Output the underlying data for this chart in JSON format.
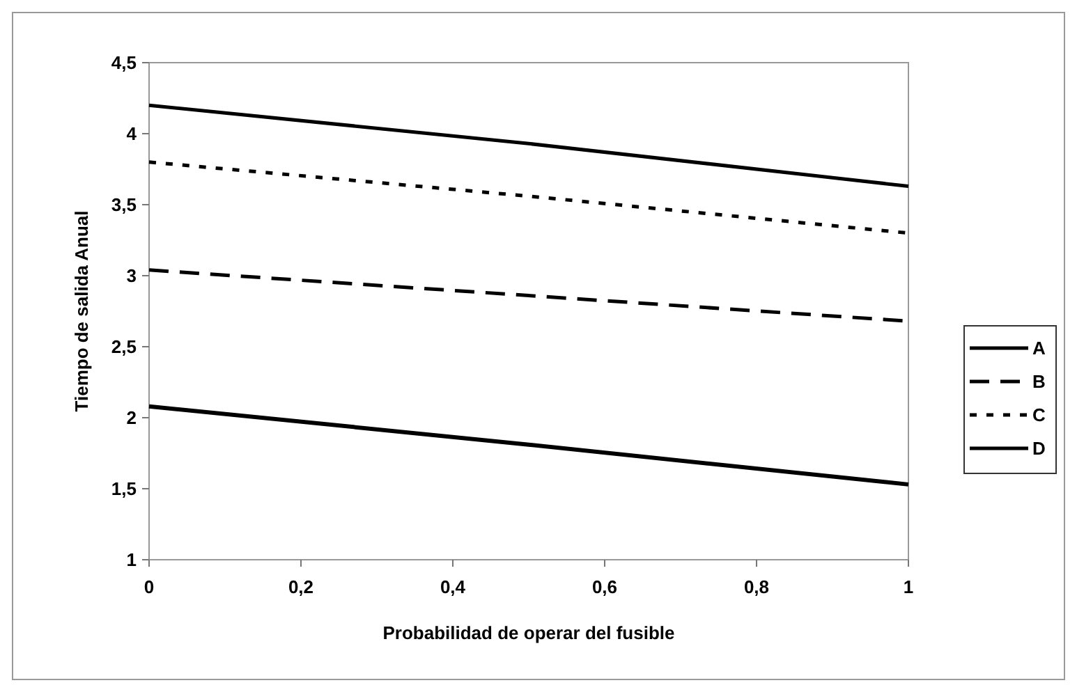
{
  "chart_data": {
    "type": "line",
    "xlabel": "Probabilidad de operar del fusible",
    "ylabel": "Tiempo de salida Anual",
    "x": [
      0,
      0.5,
      1
    ],
    "xlim": [
      0,
      1
    ],
    "xticks": [
      {
        "value": 0,
        "label": "0"
      },
      {
        "value": 0.2,
        "label": "0,2"
      },
      {
        "value": 0.4,
        "label": "0,4"
      },
      {
        "value": 0.6,
        "label": "0,6"
      },
      {
        "value": 0.8,
        "label": "0,8"
      },
      {
        "value": 1,
        "label": "1"
      }
    ],
    "ylim": [
      1,
      4.5
    ],
    "yticks": [
      {
        "value": 1,
        "label": "1"
      },
      {
        "value": 1.5,
        "label": "1,5"
      },
      {
        "value": 2,
        "label": "2"
      },
      {
        "value": 2.5,
        "label": "2,5"
      },
      {
        "value": 3,
        "label": "3"
      },
      {
        "value": 3.5,
        "label": "3,5"
      },
      {
        "value": 4,
        "label": "4"
      },
      {
        "value": 4.5,
        "label": "4,5"
      }
    ],
    "grid": false,
    "legend": "right",
    "marker": "none",
    "series": [
      {
        "name": "A",
        "color": "#000000",
        "line_style": "solid",
        "values": [
          2.08,
          1.81,
          1.53
        ]
      },
      {
        "name": "B",
        "color": "#000000",
        "line_style": "dashed",
        "values": [
          3.04,
          2.86,
          2.68
        ]
      },
      {
        "name": "C",
        "color": "#000000",
        "line_style": "dotted",
        "values": [
          3.8,
          3.56,
          3.3
        ]
      },
      {
        "name": "D",
        "color": "#000000",
        "line_style": "solid",
        "values": [
          4.2,
          3.93,
          3.63
        ]
      }
    ]
  }
}
